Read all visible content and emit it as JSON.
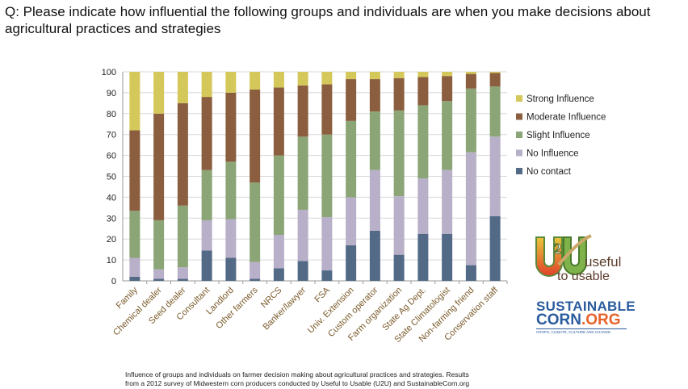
{
  "question": "Q: Please indicate how influential the following groups and individuals are when you make decisions about agricultural practices and strategies",
  "caption_line1": "Influence of groups and individuals on farmer decision making about agricultural practices and strategies. Results",
  "caption_line2": "from a 2012 survey of Midwestern corn producers conducted by Useful to Usable (U2U) and SustainableCorn.org",
  "logos": {
    "u2u": "U2U useful to usable",
    "sc_line1": "SUSTAINABLE",
    "sc_line2a": "CORN",
    "sc_line2b": ".ORG",
    "sc_tag": "CROPS, CLIMATE, CULTURE AND CHANGE"
  },
  "chart_data": {
    "type": "bar",
    "stacked": true,
    "ylim": [
      0,
      100
    ],
    "yticks": [
      0,
      10,
      20,
      30,
      40,
      50,
      60,
      70,
      80,
      90,
      100
    ],
    "grid": true,
    "legend_placement": "right",
    "categories": [
      "Family",
      "Chemical dealer",
      "Seed dealer",
      "Consultant",
      "Landlord",
      "Other farmers",
      "NRCS",
      "Banker/lawyer",
      "FSA",
      "Univ. Extension",
      "Custom operator",
      "Farm organization",
      "State Ag Dept.",
      "State Climatologist",
      "Non-farming friend",
      "Conservation staff"
    ],
    "series": [
      {
        "name": "No contact",
        "color": "#536a86",
        "values": [
          2,
          1,
          1,
          14.5,
          11,
          1,
          6,
          9.5,
          5,
          17,
          24,
          12.5,
          22.5,
          22.5,
          7.5,
          31
        ]
      },
      {
        "name": "No Influence",
        "color": "#b8afc8",
        "values": [
          9,
          4.5,
          5.5,
          14.5,
          18.5,
          8,
          16,
          24.5,
          25.5,
          23,
          29,
          28,
          26.5,
          30.5,
          54,
          38
        ]
      },
      {
        "name": "Slight Influence",
        "color": "#8ba577",
        "values": [
          22.5,
          23.5,
          29.5,
          24,
          27.5,
          38,
          38,
          35,
          39.5,
          36.5,
          28,
          41,
          35,
          33,
          30.5,
          24
        ]
      },
      {
        "name": "Moderate Influence",
        "color": "#8b5e3f",
        "values": [
          38.5,
          51,
          49,
          35,
          33,
          44.5,
          32.5,
          24.5,
          24,
          20,
          15.5,
          15.5,
          13.5,
          12,
          7,
          6.5
        ]
      },
      {
        "name": "Strong Influence",
        "color": "#d4c85a",
        "values": [
          28,
          20,
          15,
          12,
          10,
          8.5,
          7.5,
          6.5,
          6,
          3.5,
          3.5,
          3,
          2.5,
          2,
          1,
          0.5
        ]
      }
    ]
  }
}
